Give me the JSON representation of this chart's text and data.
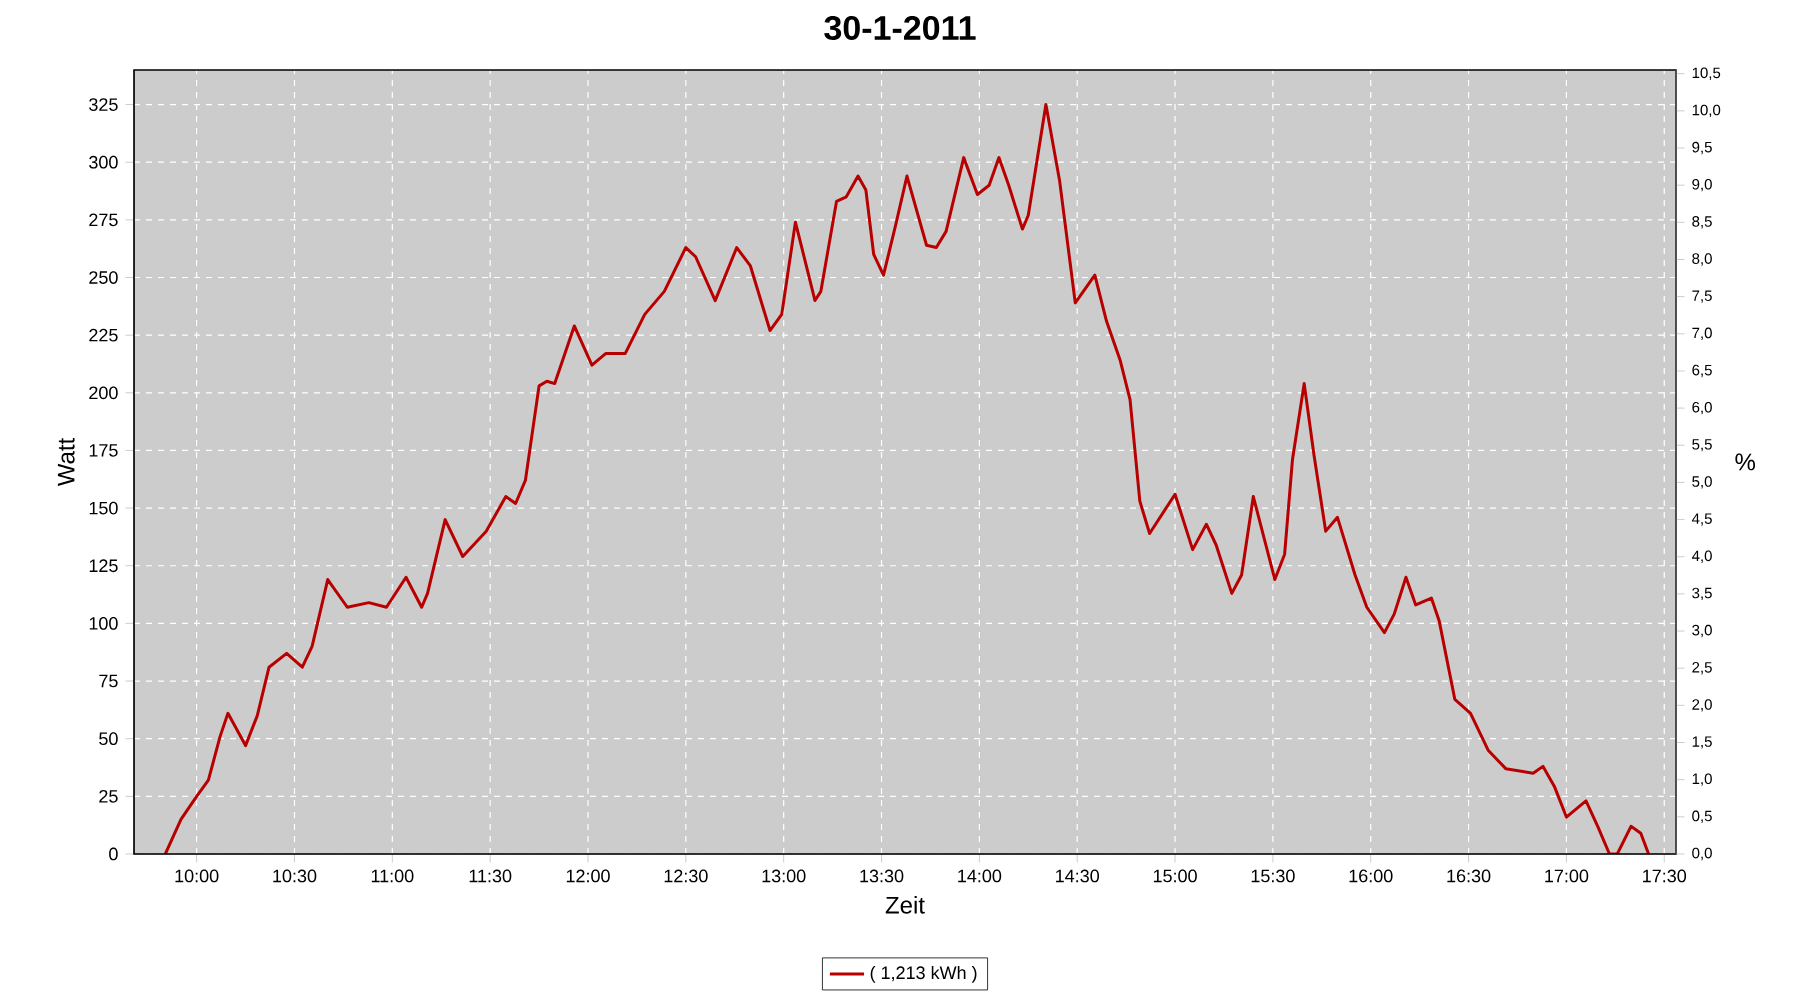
{
  "chart_data": {
    "type": "line",
    "title": "30-1-2011",
    "xlabel": "Zeit",
    "ylabel": "Watt",
    "y2label": "%",
    "x": [
      9.84,
      9.92,
      10.0,
      10.06,
      10.12,
      10.16,
      10.25,
      10.31,
      10.37,
      10.46,
      10.54,
      10.59,
      10.67,
      10.77,
      10.88,
      10.97,
      11.07,
      11.15,
      11.18,
      11.27,
      11.36,
      11.48,
      11.58,
      11.63,
      11.68,
      11.75,
      11.79,
      11.83,
      11.93,
      12.02,
      12.09,
      12.15,
      12.19,
      12.29,
      12.39,
      12.5,
      12.55,
      12.65,
      12.76,
      12.83,
      12.93,
      12.99,
      13.06,
      13.16,
      13.19,
      13.27,
      13.32,
      13.38,
      13.42,
      13.46,
      13.51,
      13.57,
      13.63,
      13.73,
      13.78,
      13.83,
      13.92,
      13.99,
      14.05,
      14.1,
      14.15,
      14.22,
      14.25,
      14.34,
      14.41,
      14.49,
      14.59,
      14.65,
      14.72,
      14.77,
      14.82,
      14.87,
      15.0,
      15.09,
      15.16,
      15.21,
      15.29,
      15.34,
      15.4,
      15.51,
      15.56,
      15.6,
      15.66,
      15.71,
      15.77,
      15.83,
      15.92,
      15.98,
      16.07,
      16.12,
      16.18,
      16.23,
      16.31,
      16.35,
      16.43,
      16.51,
      16.6,
      16.69,
      16.83,
      16.88,
      16.94,
      17.0,
      17.1,
      17.16,
      17.22,
      17.26,
      17.33,
      17.38,
      17.42
    ],
    "series": [
      {
        "name": "( 1,213 kWh )",
        "color": "#b80000",
        "values": [
          0,
          15,
          25,
          32,
          51,
          61,
          47,
          60,
          81,
          87,
          81,
          90,
          119,
          107,
          109,
          107,
          120,
          107,
          113,
          145,
          129,
          140,
          155,
          152,
          162,
          203,
          205,
          204,
          229,
          212,
          217,
          217,
          217,
          234,
          244,
          263,
          259,
          240,
          263,
          255,
          227,
          234,
          274,
          240,
          244,
          283,
          285,
          294,
          288,
          260,
          251,
          272,
          294,
          264,
          263,
          270,
          302,
          286,
          290,
          302,
          290,
          271,
          277,
          325,
          292,
          239,
          251,
          231,
          214,
          197,
          153,
          139,
          156,
          132,
          143,
          134,
          113,
          121,
          155,
          119,
          130,
          171,
          204,
          173,
          140,
          146,
          121,
          107,
          96,
          104,
          120,
          108,
          111,
          101,
          67,
          61,
          45,
          37,
          35,
          38,
          29,
          16,
          23,
          12,
          0,
          0,
          12,
          9,
          0
        ]
      }
    ],
    "xlim": [
      9.68,
      17.56
    ],
    "ylim": [
      0,
      340
    ],
    "y2lim": [
      0,
      10.55
    ],
    "xticks": [
      {
        "value": 10,
        "label": "10:00"
      },
      {
        "value": 10.5,
        "label": "10:30"
      },
      {
        "value": 11,
        "label": "11:00"
      },
      {
        "value": 11.5,
        "label": "11:30"
      },
      {
        "value": 12,
        "label": "12:00"
      },
      {
        "value": 12.5,
        "label": "12:30"
      },
      {
        "value": 13,
        "label": "13:00"
      },
      {
        "value": 13.5,
        "label": "13:30"
      },
      {
        "value": 14,
        "label": "14:00"
      },
      {
        "value": 14.5,
        "label": "14:30"
      },
      {
        "value": 15,
        "label": "15:00"
      },
      {
        "value": 15.5,
        "label": "15:30"
      },
      {
        "value": 16,
        "label": "16:00"
      },
      {
        "value": 16.5,
        "label": "16:30"
      },
      {
        "value": 17,
        "label": "17:00"
      },
      {
        "value": 17.5,
        "label": "17:30"
      }
    ],
    "yticks": [
      0,
      25,
      50,
      75,
      100,
      125,
      150,
      175,
      200,
      225,
      250,
      275,
      300,
      325
    ],
    "y2ticks": [
      {
        "value": 0,
        "label": "0,0"
      },
      {
        "value": 0.5,
        "label": "0,5"
      },
      {
        "value": 1,
        "label": "1,0"
      },
      {
        "value": 1.5,
        "label": "1,5"
      },
      {
        "value": 2,
        "label": "2,0"
      },
      {
        "value": 2.5,
        "label": "2,5"
      },
      {
        "value": 3,
        "label": "3,0"
      },
      {
        "value": 3.5,
        "label": "3,5"
      },
      {
        "value": 4,
        "label": "4,0"
      },
      {
        "value": 4.5,
        "label": "4,5"
      },
      {
        "value": 5,
        "label": "5,0"
      },
      {
        "value": 5.5,
        "label": "5,5"
      },
      {
        "value": 6,
        "label": "6,0"
      },
      {
        "value": 6.5,
        "label": "6,5"
      },
      {
        "value": 7,
        "label": "7,0"
      },
      {
        "value": 7.5,
        "label": "7,5"
      },
      {
        "value": 8,
        "label": "8,0"
      },
      {
        "value": 8.5,
        "label": "8,5"
      },
      {
        "value": 9,
        "label": "9,0"
      },
      {
        "value": 9.5,
        "label": "9,5"
      },
      {
        "value": 10,
        "label": "10,0"
      },
      {
        "value": 10.5,
        "label": "10,5"
      }
    ],
    "grid": true,
    "legend": "bottom",
    "marker": "none",
    "line_style": "solid"
  }
}
